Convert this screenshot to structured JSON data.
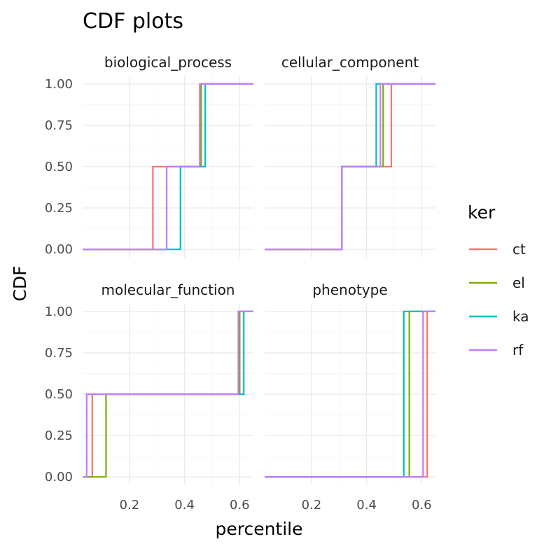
{
  "title": "CDF plots",
  "xlabel": "percentile",
  "ylabel": "CDF",
  "legend": {
    "title": "ker",
    "position": "right",
    "items": [
      {
        "name": "ct",
        "color": "#F8766D"
      },
      {
        "name": "el",
        "color": "#7CAE00"
      },
      {
        "name": "ka",
        "color": "#00BFC4"
      },
      {
        "name": "rf",
        "color": "#C77CFF"
      }
    ]
  },
  "chart_data": {
    "type": "line",
    "step": true,
    "facet_layout": "2x2",
    "xlim": [
      0.03,
      0.65
    ],
    "ylim": [
      -0.05,
      1.05
    ],
    "x_ticks": [
      0.2,
      0.4,
      0.6
    ],
    "x_tick_labels": [
      "0.2",
      "0.4",
      "0.6"
    ],
    "y_ticks": [
      0,
      0.25,
      0.5,
      0.75,
      1
    ],
    "y_tick_labels": [
      "0.00",
      "0.25",
      "0.50",
      "0.75",
      "1.00"
    ],
    "grid": true,
    "facets": [
      {
        "name": "biological_process",
        "series": [
          {
            "name": "ct",
            "steps": [
              0.285,
              0.46
            ]
          },
          {
            "name": "el",
            "steps": [
              0.335,
              0.46
            ]
          },
          {
            "name": "ka",
            "steps": [
              0.385,
              0.475
            ]
          },
          {
            "name": "rf",
            "steps": [
              0.335,
              0.455
            ]
          }
        ]
      },
      {
        "name": "cellular_component",
        "series": [
          {
            "name": "ct",
            "steps": [
              0.31,
              0.49
            ]
          },
          {
            "name": "el",
            "steps": [
              0.31,
              0.46
            ]
          },
          {
            "name": "ka",
            "steps": [
              0.31,
              0.435
            ]
          },
          {
            "name": "rf",
            "steps": [
              0.31,
              0.45
            ]
          }
        ]
      },
      {
        "name": "molecular_function",
        "series": [
          {
            "name": "ct",
            "steps": [
              0.065,
              0.6
            ]
          },
          {
            "name": "el",
            "steps": [
              0.115,
              0.6
            ]
          },
          {
            "name": "ka",
            "steps": [
              0.045,
              0.615
            ]
          },
          {
            "name": "rf",
            "steps": [
              0.045,
              0.595
            ]
          }
        ]
      },
      {
        "name": "phenotype",
        "series": [
          {
            "name": "ct",
            "steps": [
              0.62
            ]
          },
          {
            "name": "el",
            "steps": [
              0.555
            ]
          },
          {
            "name": "ka",
            "steps": [
              0.535
            ]
          },
          {
            "name": "rf",
            "steps": [
              0.605
            ]
          }
        ]
      }
    ]
  }
}
